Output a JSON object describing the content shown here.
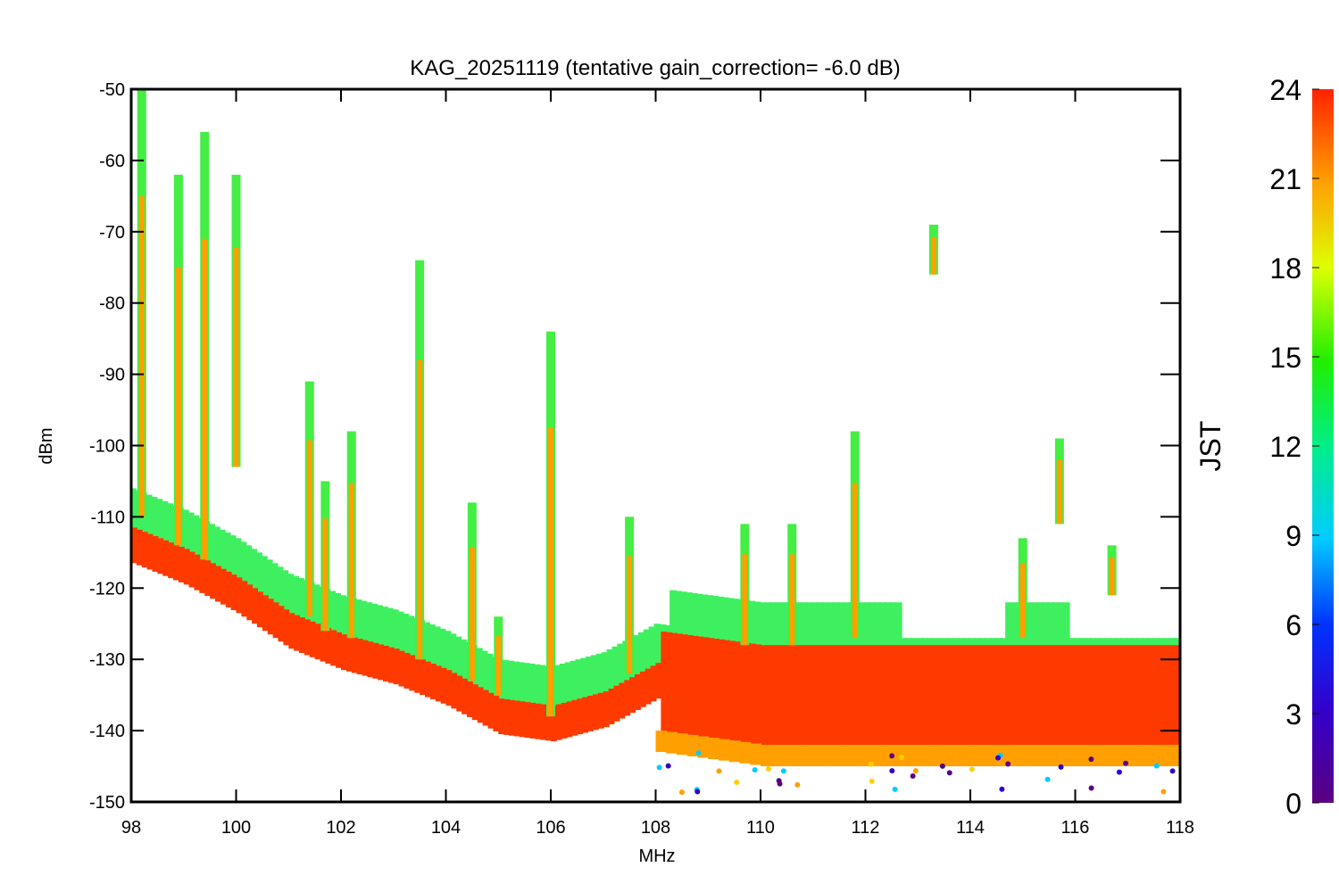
{
  "chart_data": {
    "type": "scatter",
    "title": "KAG_20251119 (tentative gain_correction= -6.0 dB)",
    "xlabel": "MHz",
    "ylabel": "dBm",
    "xlim": [
      98,
      118
    ],
    "ylim": [
      -150,
      -50
    ],
    "xticks": [
      "98",
      "100",
      "102",
      "104",
      "106",
      "108",
      "110",
      "112",
      "114",
      "116",
      "118"
    ],
    "yticks": [
      "-50",
      "-60",
      "-70",
      "-80",
      "-90",
      "-100",
      "-110",
      "-120",
      "-130",
      "-140",
      "-150"
    ],
    "grid": false,
    "colorbar": {
      "label": "JST",
      "range": [
        0,
        24
      ],
      "ticks": [
        "0",
        "3",
        "6",
        "9",
        "12",
        "15",
        "18",
        "21",
        "24"
      ],
      "colormap": "rainbow (purple → blue → cyan → green → yellow → orange → red)"
    },
    "noise_floor": [
      {
        "x": 98,
        "y": -114
      },
      {
        "x": 99,
        "y": -117
      },
      {
        "x": 100,
        "y": -121
      },
      {
        "x": 101,
        "y": -126
      },
      {
        "x": 102,
        "y": -129
      },
      {
        "x": 103,
        "y": -131
      },
      {
        "x": 104,
        "y": -134
      },
      {
        "x": 105,
        "y": -138
      },
      {
        "x": 106,
        "y": -139
      },
      {
        "x": 107,
        "y": -137
      },
      {
        "x": 108,
        "y": -133
      },
      {
        "x": 110,
        "y": -135
      },
      {
        "x": 112,
        "y": -135
      },
      {
        "x": 114,
        "y": -135
      },
      {
        "x": 116,
        "y": -135
      },
      {
        "x": 118,
        "y": -135
      }
    ],
    "signals": [
      {
        "x": 98.2,
        "y_top": -50,
        "y_bottom": -110
      },
      {
        "x": 98.9,
        "y_top": -62,
        "y_bottom": -114
      },
      {
        "x": 99.4,
        "y_top": -56,
        "y_bottom": -116
      },
      {
        "x": 100.0,
        "y_top": -62,
        "y_bottom": -103
      },
      {
        "x": 101.4,
        "y_top": -91,
        "y_bottom": -124
      },
      {
        "x": 101.7,
        "y_top": -105,
        "y_bottom": -126
      },
      {
        "x": 102.2,
        "y_top": -98,
        "y_bottom": -127
      },
      {
        "x": 103.5,
        "y_top": -74,
        "y_bottom": -130
      },
      {
        "x": 104.5,
        "y_top": -108,
        "y_bottom": -133
      },
      {
        "x": 105.0,
        "y_top": -124,
        "y_bottom": -135
      },
      {
        "x": 106.0,
        "y_top": -84,
        "y_bottom": -138
      },
      {
        "x": 107.5,
        "y_top": -110,
        "y_bottom": -132
      },
      {
        "x": 109.7,
        "y_top": -111,
        "y_bottom": -128
      },
      {
        "x": 110.6,
        "y_top": -111,
        "y_bottom": -128
      },
      {
        "x": 111.8,
        "y_top": -98,
        "y_bottom": -127
      },
      {
        "x": 113.3,
        "y_top": -69,
        "y_bottom": -76
      },
      {
        "x": 115.0,
        "y_top": -113,
        "y_bottom": -127
      },
      {
        "x": 115.7,
        "y_top": -99,
        "y_bottom": -111
      },
      {
        "x": 116.7,
        "y_top": -114,
        "y_bottom": -121
      }
    ]
  }
}
